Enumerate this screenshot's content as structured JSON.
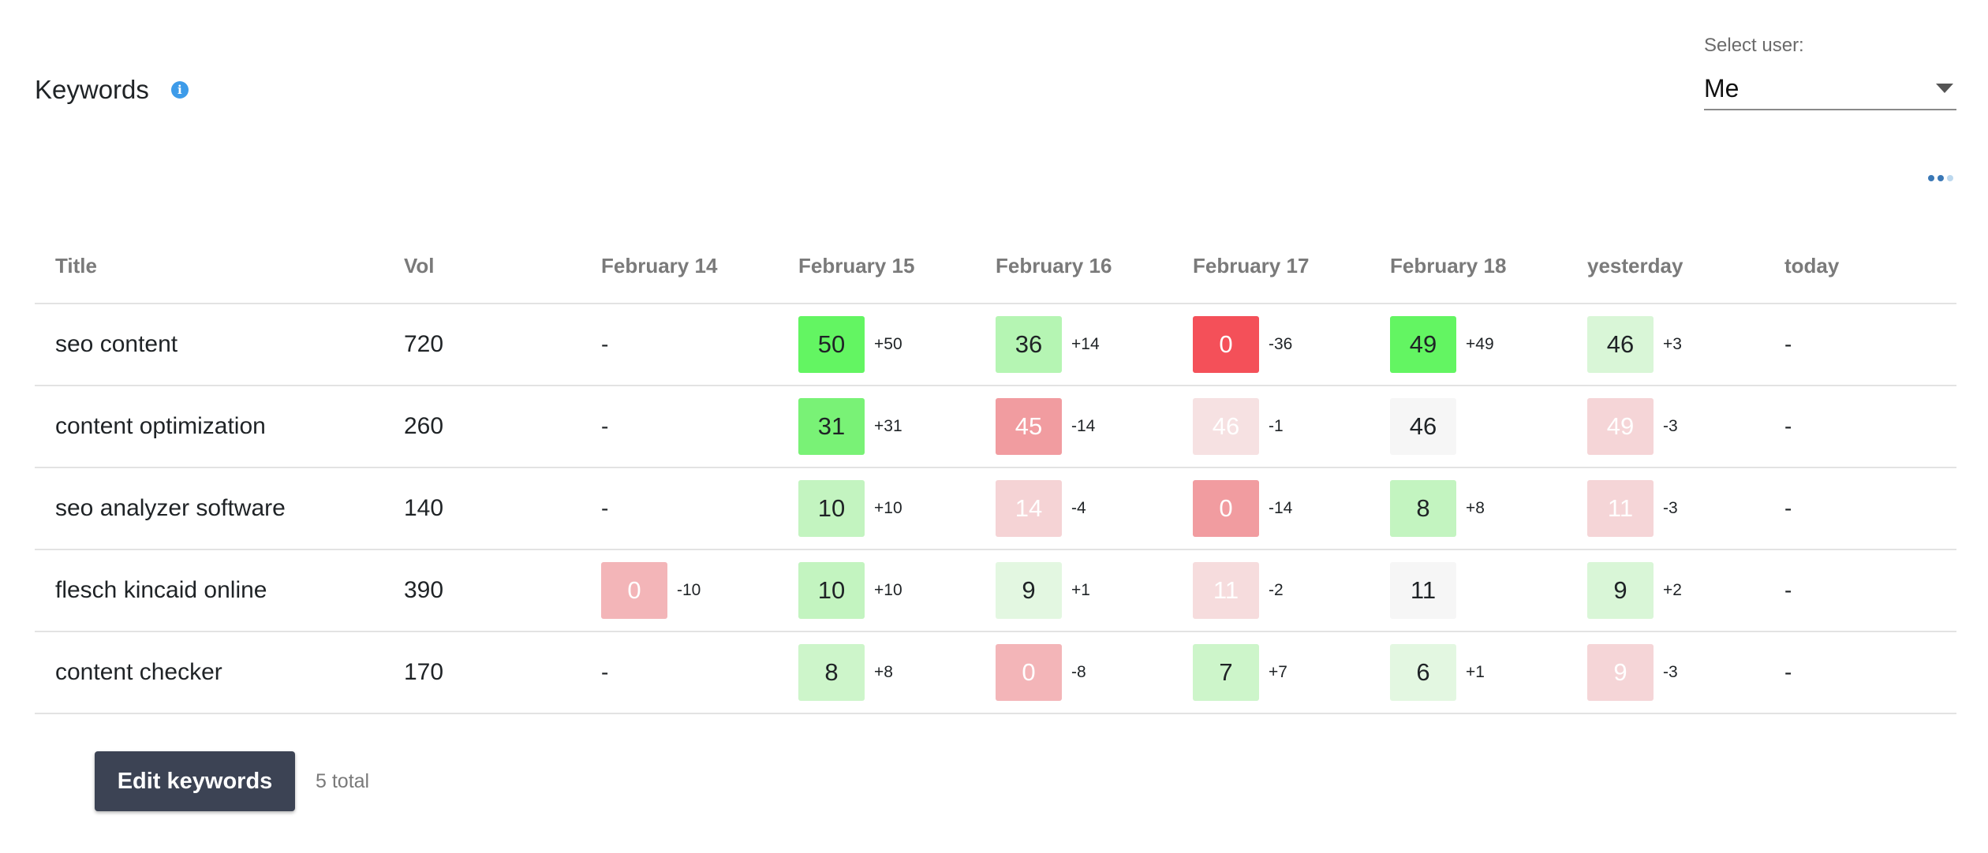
{
  "header": {
    "title": "Keywords",
    "info_icon": "info-icon",
    "info_glyph": "i",
    "accent_color": "#3d9be9"
  },
  "user_select": {
    "label": "Select user:",
    "value": "Me",
    "icon": "caret-down-icon"
  },
  "more_icon": "more-dots-icon",
  "table": {
    "columns": [
      "Title",
      "Vol",
      "February 14",
      "February 15",
      "February 16",
      "February 17",
      "February 18",
      "yesterday",
      "today"
    ],
    "rows": [
      {
        "title": "seo content",
        "vol": "720",
        "cells": [
          {
            "empty": true,
            "text": "-"
          },
          {
            "pos": "50",
            "delta": "+50",
            "bg": "#63f562",
            "fg": "#1f2326"
          },
          {
            "pos": "36",
            "delta": "+14",
            "bg": "#b5f5b3",
            "fg": "#1f2326"
          },
          {
            "pos": "0",
            "delta": "-36",
            "bg": "#f45059",
            "fg": "#ffffff"
          },
          {
            "pos": "49",
            "delta": "+49",
            "bg": "#63f562",
            "fg": "#1f2326"
          },
          {
            "pos": "46",
            "delta": "+3",
            "bg": "#d9f6d7",
            "fg": "#1f2326"
          },
          {
            "empty": true,
            "text": "-"
          }
        ]
      },
      {
        "title": "content optimization",
        "vol": "260",
        "cells": [
          {
            "empty": true,
            "text": "-"
          },
          {
            "pos": "31",
            "delta": "+31",
            "bg": "#79f276",
            "fg": "#1f2326"
          },
          {
            "pos": "45",
            "delta": "-14",
            "bg": "#f19ca0",
            "fg": "#ffffff"
          },
          {
            "pos": "46",
            "delta": "-1",
            "bg": "#f6e1e2",
            "fg": "#ffffff"
          },
          {
            "pos": "46",
            "delta": "",
            "bg": "#f6f6f6",
            "fg": "#1f2326"
          },
          {
            "pos": "49",
            "delta": "-3",
            "bg": "#f5d5d7",
            "fg": "#ffffff"
          },
          {
            "empty": true,
            "text": "-"
          }
        ]
      },
      {
        "title": "seo analyzer software",
        "vol": "140",
        "cells": [
          {
            "empty": true,
            "text": "-"
          },
          {
            "pos": "10",
            "delta": "+10",
            "bg": "#c3f4c0",
            "fg": "#1f2326"
          },
          {
            "pos": "14",
            "delta": "-4",
            "bg": "#f5d3d5",
            "fg": "#ffffff"
          },
          {
            "pos": "0",
            "delta": "-14",
            "bg": "#f19ca0",
            "fg": "#ffffff"
          },
          {
            "pos": "8",
            "delta": "+8",
            "bg": "#c3f4c0",
            "fg": "#1f2326"
          },
          {
            "pos": "11",
            "delta": "-3",
            "bg": "#f5d5d7",
            "fg": "#ffffff"
          },
          {
            "empty": true,
            "text": "-"
          }
        ]
      },
      {
        "title": "flesch kincaid online",
        "vol": "390",
        "cells": [
          {
            "pos": "0",
            "delta": "-10",
            "bg": "#f3b5b8",
            "fg": "#ffffff"
          },
          {
            "pos": "10",
            "delta": "+10",
            "bg": "#c3f4c0",
            "fg": "#1f2326"
          },
          {
            "pos": "9",
            "delta": "+1",
            "bg": "#e3f7e1",
            "fg": "#1f2326"
          },
          {
            "pos": "11",
            "delta": "-2",
            "bg": "#f6dcdd",
            "fg": "#ffffff"
          },
          {
            "pos": "11",
            "delta": "",
            "bg": "#f6f6f6",
            "fg": "#1f2326"
          },
          {
            "pos": "9",
            "delta": "+2",
            "bg": "#d9f6d7",
            "fg": "#1f2326"
          },
          {
            "empty": true,
            "text": "-"
          }
        ]
      },
      {
        "title": "content checker",
        "vol": "170",
        "cells": [
          {
            "empty": true,
            "text": "-"
          },
          {
            "pos": "8",
            "delta": "+8",
            "bg": "#cdf5ca",
            "fg": "#1f2326"
          },
          {
            "pos": "0",
            "delta": "-8",
            "bg": "#f3b5b8",
            "fg": "#ffffff"
          },
          {
            "pos": "7",
            "delta": "+7",
            "bg": "#cdf5ca",
            "fg": "#1f2326"
          },
          {
            "pos": "6",
            "delta": "+1",
            "bg": "#e3f7e1",
            "fg": "#1f2326"
          },
          {
            "pos": "9",
            "delta": "-3",
            "bg": "#f5d5d7",
            "fg": "#ffffff"
          },
          {
            "empty": true,
            "text": "-"
          }
        ]
      }
    ]
  },
  "footer": {
    "edit_label": "Edit keywords",
    "total_text": "5 total"
  }
}
